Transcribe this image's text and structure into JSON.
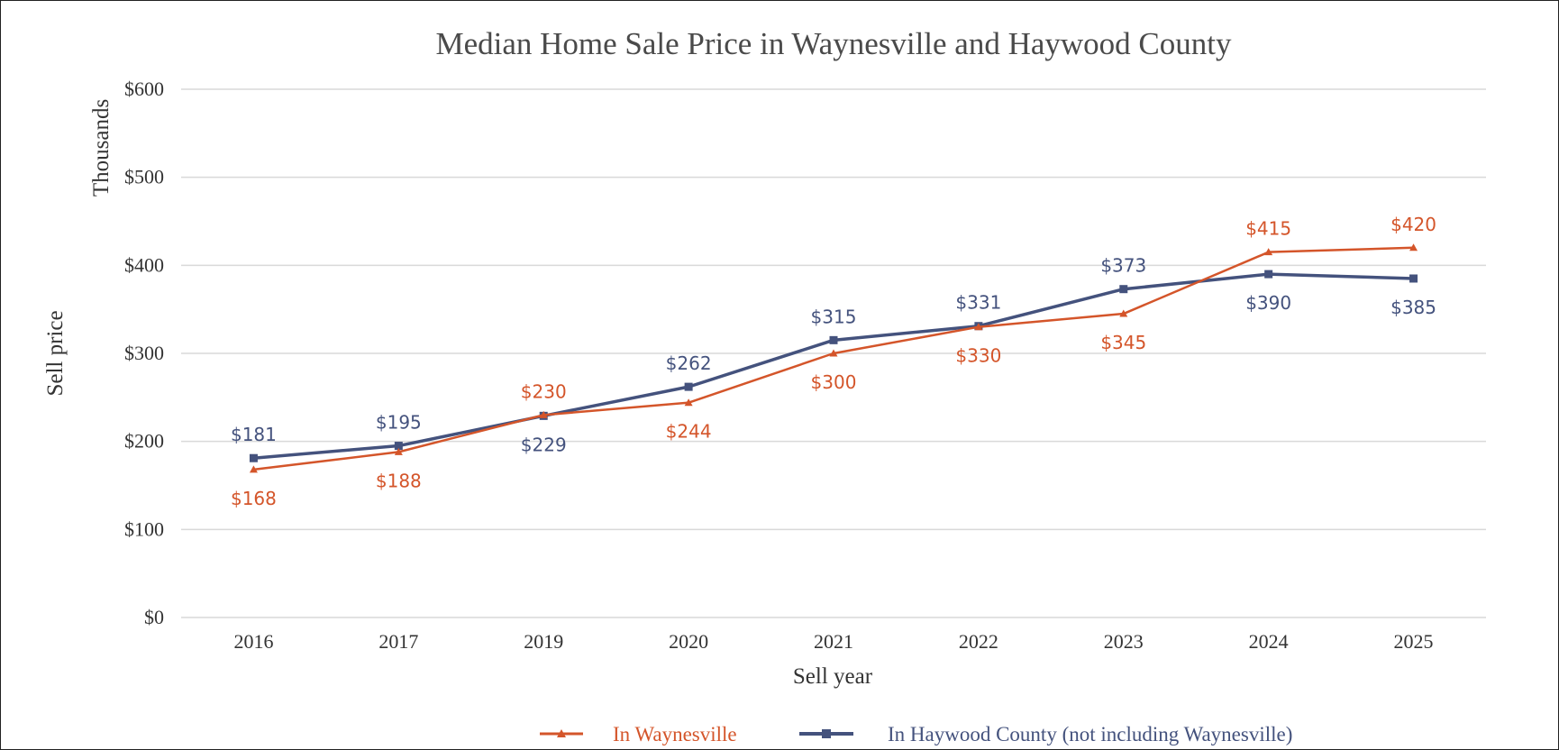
{
  "chart_data": {
    "type": "line",
    "title": "Median Home Sale Price in Waynesville and Haywood County",
    "xlabel": "Sell year",
    "ylabel": "Sell price",
    "y_unit_label": "Thousands",
    "categories": [
      "2016",
      "2017",
      "2019",
      "2020",
      "2021",
      "2022",
      "2023",
      "2024",
      "2025"
    ],
    "ylim": [
      0,
      600
    ],
    "yticks": [
      0,
      100,
      200,
      300,
      400,
      500,
      600
    ],
    "ytick_labels": [
      "$0",
      "$100",
      "$200",
      "$300",
      "$400",
      "$500",
      "$600"
    ],
    "grid": true,
    "legend_position": "bottom",
    "series": [
      {
        "name": "In Waynesville",
        "color": "#d4552a",
        "marker": "triangle",
        "values": [
          168,
          188,
          230,
          244,
          300,
          330,
          345,
          415,
          420
        ],
        "labels": [
          "$168",
          "$188",
          "$230",
          "$244",
          "$300",
          "$330",
          "$345",
          "$415",
          "$420"
        ],
        "label_side": [
          "below",
          "below",
          "above",
          "below",
          "below",
          "below",
          "below",
          "above",
          "above"
        ]
      },
      {
        "name": "In Haywood County (not including Waynesville)",
        "color": "#44527d",
        "marker": "square",
        "values": [
          181,
          195,
          229,
          262,
          315,
          331,
          373,
          390,
          385
        ],
        "labels": [
          "$181",
          "$195",
          "$229",
          "$262",
          "$315",
          "$331",
          "$373",
          "$390",
          "$385"
        ],
        "label_side": [
          "above",
          "above",
          "below",
          "above",
          "above",
          "above",
          "above",
          "below",
          "below"
        ]
      }
    ]
  }
}
